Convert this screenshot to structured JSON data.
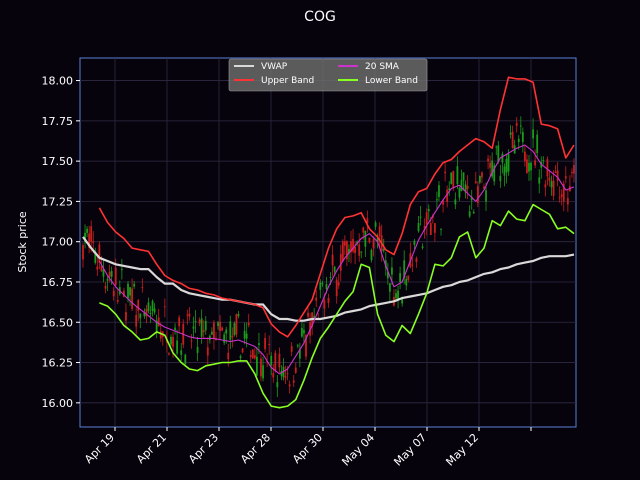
{
  "chart_data": {
    "type": "line",
    "title": "COG",
    "xlabel": "",
    "ylabel": "Stock price",
    "ylim": [
      15.85,
      18.14
    ],
    "yticks": [
      "16.00",
      "16.25",
      "16.50",
      "16.75",
      "17.00",
      "17.25",
      "17.50",
      "17.75",
      "18.00"
    ],
    "xticks": [
      "Apr 19",
      "Apr 21",
      "Apr 23",
      "Apr 28",
      "Apr 30",
      "May 04",
      "May 07",
      "May 12",
      ""
    ],
    "grid": true,
    "legend_position": "top-center",
    "background": "#07030d",
    "axis_color": "#5b7fd6",
    "candle_up_color": "#1a9b1a",
    "candle_down_color": "#c8201e",
    "series": [
      {
        "name": "VWAP",
        "color": "#d9d9d9",
        "values": [
          17.03,
          16.96,
          16.9,
          16.88,
          16.86,
          16.85,
          16.84,
          16.83,
          16.83,
          16.78,
          16.74,
          16.74,
          16.7,
          16.68,
          16.67,
          16.66,
          16.65,
          16.64,
          16.64,
          16.63,
          16.62,
          16.61,
          16.61,
          16.55,
          16.52,
          16.52,
          16.51,
          16.51,
          16.52,
          16.52,
          16.53,
          16.54,
          16.56,
          16.57,
          16.58,
          16.6,
          16.61,
          16.62,
          16.63,
          16.65,
          16.66,
          16.67,
          16.68,
          16.7,
          16.72,
          16.73,
          16.75,
          16.76,
          16.78,
          16.8,
          16.81,
          16.83,
          16.84,
          16.86,
          16.87,
          16.88,
          16.9,
          16.91,
          16.91,
          16.91,
          16.92
        ]
      },
      {
        "name": "Upper Band",
        "color": "#ff3333",
        "values": [
          null,
          null,
          17.21,
          17.12,
          17.06,
          17.02,
          16.96,
          16.95,
          16.94,
          16.86,
          16.79,
          16.76,
          16.74,
          16.71,
          16.7,
          16.68,
          16.67,
          16.65,
          16.64,
          16.63,
          16.62,
          16.61,
          16.59,
          16.49,
          16.44,
          16.41,
          16.48,
          16.56,
          16.64,
          16.8,
          16.96,
          17.08,
          17.15,
          17.16,
          17.18,
          17.08,
          17.03,
          16.95,
          16.92,
          17.05,
          17.23,
          17.31,
          17.33,
          17.42,
          17.49,
          17.51,
          17.56,
          17.6,
          17.64,
          17.62,
          17.58,
          17.82,
          18.02,
          18.01,
          18.01,
          17.99,
          17.73,
          17.72,
          17.7,
          17.52,
          17.6
        ]
      },
      {
        "name": "20 SMA",
        "color": "#cc33cc",
        "values": [
          null,
          null,
          16.88,
          16.79,
          16.72,
          16.67,
          16.62,
          16.58,
          16.54,
          16.5,
          16.47,
          16.45,
          16.43,
          16.41,
          16.4,
          16.4,
          16.4,
          16.39,
          16.38,
          16.39,
          16.37,
          16.35,
          16.3,
          16.22,
          16.18,
          16.21,
          16.29,
          16.37,
          16.48,
          16.6,
          16.72,
          16.82,
          16.9,
          16.96,
          17.02,
          17.05,
          17.0,
          16.85,
          16.72,
          16.75,
          16.88,
          17.01,
          17.1,
          17.18,
          17.26,
          17.33,
          17.35,
          17.3,
          17.25,
          17.32,
          17.43,
          17.52,
          17.55,
          17.58,
          17.6,
          17.56,
          17.48,
          17.44,
          17.4,
          17.32,
          17.34
        ]
      },
      {
        "name": "Lower Band",
        "color": "#88ff22",
        "values": [
          null,
          null,
          16.62,
          16.6,
          16.55,
          16.48,
          16.44,
          16.39,
          16.4,
          16.44,
          16.42,
          16.31,
          16.25,
          16.21,
          16.2,
          16.23,
          16.24,
          16.25,
          16.25,
          16.26,
          16.26,
          16.18,
          16.06,
          15.98,
          15.97,
          15.98,
          16.02,
          16.14,
          16.28,
          16.4,
          16.47,
          16.55,
          16.63,
          16.69,
          16.86,
          16.84,
          16.55,
          16.42,
          16.38,
          16.48,
          16.43,
          16.55,
          16.68,
          16.86,
          16.85,
          16.9,
          17.03,
          17.06,
          16.9,
          16.96,
          17.13,
          17.1,
          17.19,
          17.14,
          17.13,
          17.23,
          17.2,
          17.17,
          17.08,
          17.09,
          17.05
        ]
      }
    ]
  }
}
